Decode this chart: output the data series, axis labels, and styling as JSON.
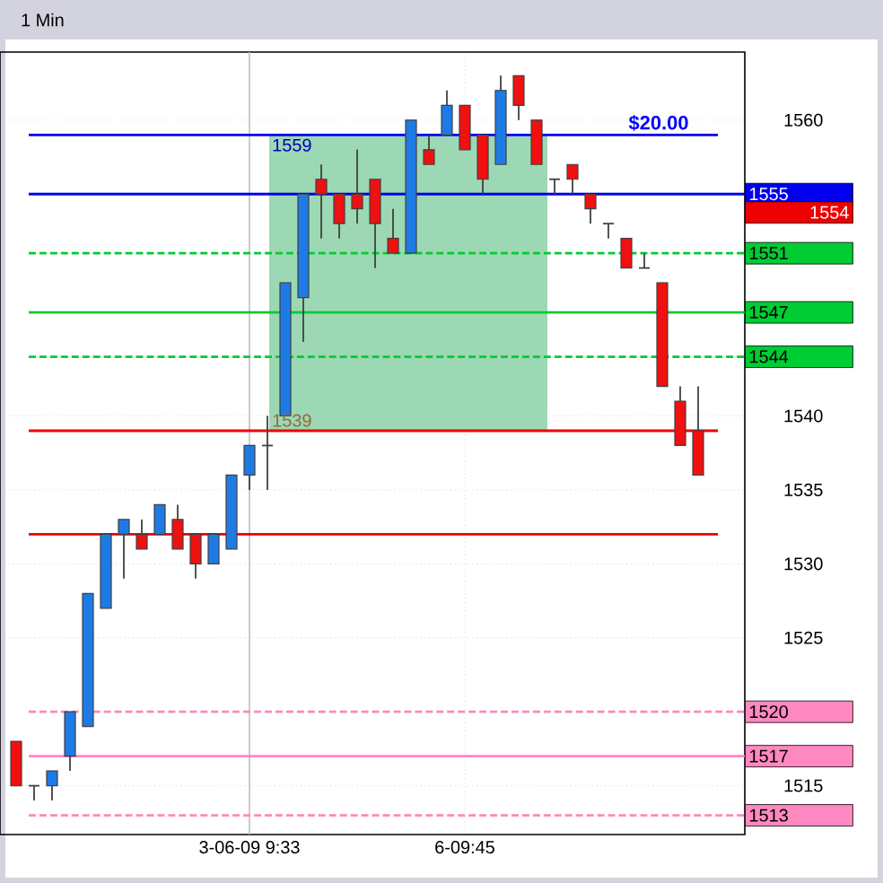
{
  "chart_data": {
    "type": "candlestick",
    "title": "1 Min",
    "categories": [
      null,
      null,
      null,
      null,
      null,
      null,
      null,
      null,
      null,
      null,
      null,
      null,
      null,
      "3-06-09 9:33",
      null,
      null,
      null,
      null,
      null,
      null,
      null,
      null,
      null,
      null,
      null,
      "6-09:45",
      null,
      null,
      null,
      null,
      null,
      null,
      null,
      null,
      null,
      null,
      null,
      null,
      null
    ],
    "ohlc": [
      [
        1518,
        1518,
        1515,
        1515
      ],
      [
        1515,
        1515,
        1514,
        1515
      ],
      [
        1515,
        1516,
        1514,
        1516
      ],
      [
        1517,
        1520,
        1516,
        1520
      ],
      [
        1519,
        1528,
        1519,
        1528
      ],
      [
        1527,
        1532,
        1527,
        1532
      ],
      [
        1532,
        1533,
        1529,
        1533
      ],
      [
        1532,
        1533,
        1531,
        1531
      ],
      [
        1532,
        1534,
        1532,
        1534
      ],
      [
        1533,
        1534,
        1531,
        1531
      ],
      [
        1532,
        1532,
        1529,
        1530
      ],
      [
        1530,
        1532,
        1530,
        1532
      ],
      [
        1531,
        1536,
        1531,
        1536
      ],
      [
        1536,
        1538,
        1535,
        1538
      ],
      [
        1538,
        1540,
        1535,
        1538
      ],
      [
        1540,
        1549,
        1540,
        1549
      ],
      [
        1548,
        1555,
        1545,
        1555
      ],
      [
        1556,
        1557,
        1552,
        1555
      ],
      [
        1555,
        1555,
        1552,
        1553
      ],
      [
        1555,
        1558,
        1553,
        1554
      ],
      [
        1556,
        1556,
        1550,
        1553
      ],
      [
        1552,
        1554,
        1551,
        1551
      ],
      [
        1551,
        1560,
        1551,
        1560
      ],
      [
        1558,
        1559,
        1557,
        1557
      ],
      [
        1559,
        1562,
        1559,
        1561
      ],
      [
        1561,
        1561,
        1558,
        1558
      ],
      [
        1559,
        1559,
        1555,
        1556
      ],
      [
        1557,
        1563,
        1557,
        1562
      ],
      [
        1563,
        1563,
        1560,
        1561
      ],
      [
        1560,
        1560,
        1557,
        1557
      ],
      [
        1556,
        1556,
        1555,
        1556
      ],
      [
        1557,
        1557,
        1555,
        1556
      ],
      [
        1555,
        1555,
        1553,
        1554
      ],
      [
        1553,
        1553,
        1552,
        1553
      ],
      [
        1552,
        1552,
        1550,
        1550
      ],
      [
        1550,
        1551,
        1550,
        1550
      ],
      [
        1549,
        1549,
        1542,
        1542
      ],
      [
        1541,
        1542,
        1538,
        1538
      ],
      [
        1539,
        1542,
        1536,
        1536
      ]
    ],
    "colors": [
      "#f01010",
      "#303030",
      "#1e7be6",
      "#1e7be6",
      "#1e7be6",
      "#1e7be6",
      "#1e7be6",
      "#f01010",
      "#1e7be6",
      "#f01010",
      "#f01010",
      "#1e7be6",
      "#1e7be6",
      "#1e7be6",
      "#303030",
      "#1e7be6",
      "#1e7be6",
      "#f01010",
      "#f01010",
      "#f01010",
      "#f01010",
      "#f01010",
      "#1e7be6",
      "#f01010",
      "#1e7be6",
      "#f01010",
      "#f01010",
      "#1e7be6",
      "#f01010",
      "#f01010",
      "#303030",
      "#f01010",
      "#f01010",
      "#303030",
      "#f01010",
      "#303030",
      "#f01010",
      "#f01010",
      "#f01010"
    ],
    "ylim": [
      1511.7,
      1564.6
    ],
    "yticks": [
      1515,
      1525,
      1530,
      1535,
      1540,
      1560
    ],
    "grid": true,
    "bands": [
      {
        "axis": "y",
        "from": 1539,
        "to": 1559,
        "color": "#9cd8b4"
      }
    ],
    "ref_lines": [
      {
        "axis": "x",
        "value": "3-06-09 9:33",
        "color": "#c0c0c0"
      },
      {
        "axis": "y",
        "value": 1559,
        "color": "#0000ee"
      },
      {
        "axis": "y",
        "value": 1555,
        "label": "1555",
        "color": "#0000ee"
      },
      {
        "axis": "y",
        "value": 1551,
        "label": "1551",
        "color": "#00cc33",
        "line_style": "dashed"
      },
      {
        "axis": "y",
        "value": 1547,
        "label": "1547",
        "color": "#00cc33"
      },
      {
        "axis": "y",
        "value": 1544,
        "label": "1544",
        "color": "#00cc33",
        "line_style": "dashed"
      },
      {
        "axis": "y",
        "value": 1539,
        "color": "#ee0000"
      },
      {
        "axis": "y",
        "value": 1532,
        "color": "#ee0000"
      },
      {
        "axis": "y",
        "value": 1520,
        "label": "1520",
        "color": "#ff88c0",
        "line_style": "dashed"
      },
      {
        "axis": "y",
        "value": 1517,
        "label": "1517",
        "color": "#ff88c0"
      },
      {
        "axis": "y",
        "value": 1513,
        "label": "1513",
        "color": "#ff88c0",
        "line_style": "dashed"
      }
    ],
    "annotations": [
      {
        "text": "1559",
        "y": 1559
      },
      {
        "text": "1539",
        "y": 1539
      },
      {
        "text": "$20.00",
        "y": 1559
      },
      "1554"
    ]
  }
}
